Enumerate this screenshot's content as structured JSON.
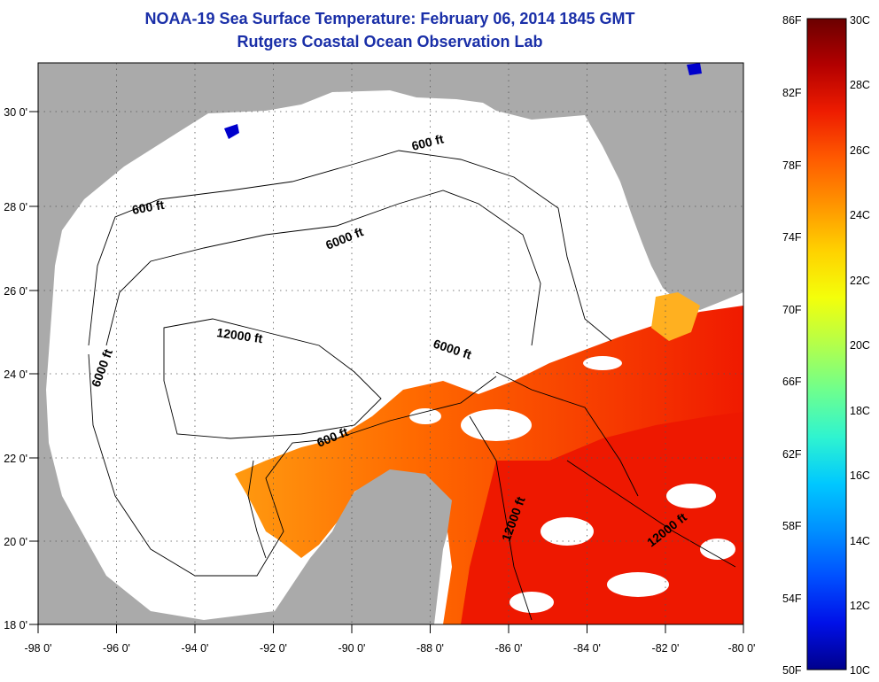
{
  "header": {
    "title": "NOAA-19 Sea Surface Temperature:  February 06, 2014 1845 GMT",
    "subtitle": "Rutgers Coastal Ocean Observation Lab"
  },
  "map": {
    "lon_range": [
      -98,
      -80
    ],
    "lat_range": [
      18,
      31
    ],
    "lon_ticks": [
      "-98 0'",
      "-96 0'",
      "-94 0'",
      "-92 0'",
      "-90 0'",
      "-88 0'",
      "-86 0'",
      "-84 0'",
      "-82 0'",
      "-80 0'"
    ],
    "lat_ticks": [
      "18 0'",
      "20 0'",
      "22 0'",
      "24 0'",
      "26 0'",
      "28 0'",
      "30 0'"
    ],
    "land_color": "#aaaaaa",
    "ocean_nodata_color": "#ffffff",
    "contour_labels": [
      "600 ft",
      "600 ft",
      "6000 ft",
      "6000 ft",
      "6000 ft",
      "12000 ft",
      "600 ft",
      "12000 ft",
      "12000 ft"
    ]
  },
  "colorbar": {
    "fahrenheit_labels": [
      "86F",
      "82F",
      "78F",
      "74F",
      "70F",
      "66F",
      "62F",
      "58F",
      "54F",
      "50F"
    ],
    "celsius_labels": [
      "30C",
      "28C",
      "26C",
      "24C",
      "22C",
      "20C",
      "18C",
      "16C",
      "14C",
      "12C",
      "10C"
    ],
    "colors": [
      "#6b0000",
      "#b30000",
      "#ee1c00",
      "#ff5a00",
      "#ff9400",
      "#ffd200",
      "#f4ff0a",
      "#b4ff4a",
      "#6eff8e",
      "#2ff4d0",
      "#00c8ff",
      "#0090ff",
      "#0050ff",
      "#0010e8",
      "#00008c"
    ]
  }
}
